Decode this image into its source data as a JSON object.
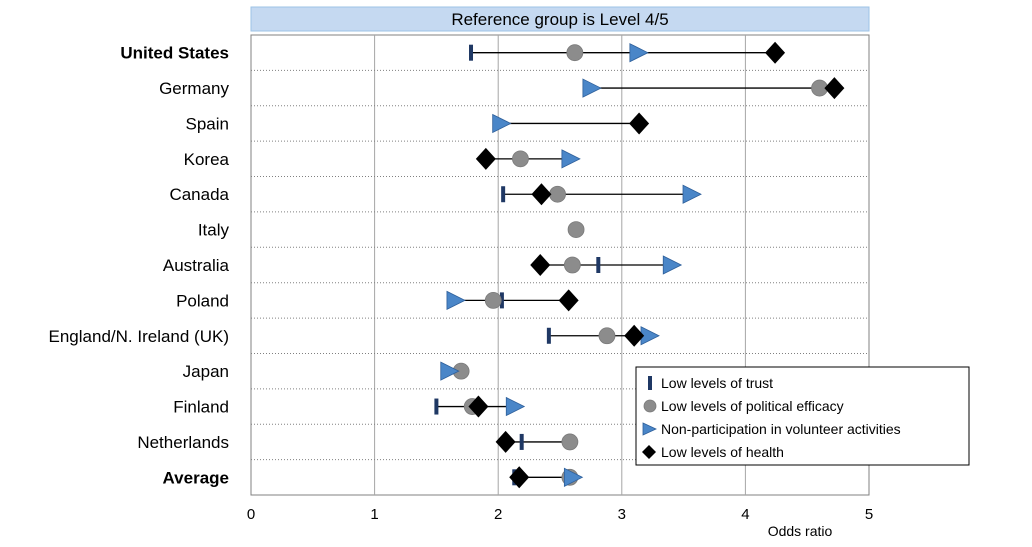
{
  "chart_data": {
    "type": "scatter",
    "title": "Reference group is Level 4/5",
    "xlabel": "Odds ratio",
    "ylabel": "",
    "xlim": [
      0,
      5
    ],
    "x_ticks": [
      "0",
      "1",
      "2",
      "3",
      "4",
      "5"
    ],
    "grid": true,
    "legend_position": "bottom-right",
    "categories": [
      "United States",
      "Germany",
      "Spain",
      "Korea",
      "Canada",
      "Italy",
      "Australia",
      "Poland",
      "England/N. Ireland (UK)",
      "Japan",
      "Finland",
      "Netherlands",
      "Average"
    ],
    "bold_categories": [
      "United States",
      "Average"
    ],
    "series": [
      {
        "name": "Low levels of trust",
        "marker": "dash",
        "color": "#1f3864",
        "values": [
          1.78,
          null,
          null,
          null,
          2.04,
          null,
          2.81,
          2.03,
          2.41,
          null,
          1.5,
          2.19,
          2.13
        ]
      },
      {
        "name": "Low levels of political efficacy",
        "marker": "circle",
        "color": "#8c8c8c",
        "values": [
          2.62,
          4.6,
          null,
          2.18,
          2.48,
          2.63,
          2.6,
          1.96,
          2.88,
          1.7,
          1.79,
          2.58,
          2.58
        ]
      },
      {
        "name": "Non-participation in volunteer activities",
        "marker": "triangle",
        "color": "#4a86c8",
        "values": [
          3.13,
          2.75,
          2.02,
          2.58,
          3.56,
          null,
          3.4,
          1.65,
          3.22,
          1.6,
          2.13,
          null,
          2.6
        ]
      },
      {
        "name": "Low levels of health",
        "marker": "diamond",
        "color": "#000000",
        "values": [
          4.24,
          4.72,
          3.14,
          1.9,
          2.35,
          null,
          2.34,
          2.57,
          3.1,
          null,
          1.84,
          2.06,
          2.17
        ]
      }
    ]
  }
}
